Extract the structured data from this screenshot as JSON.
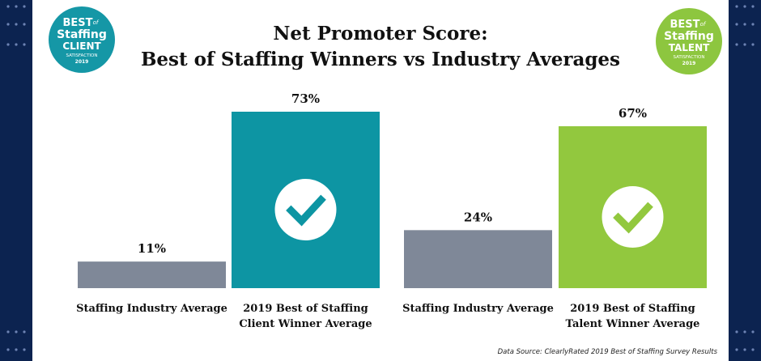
{
  "title": {
    "line1": "Net Promoter Score:",
    "line2": "Best of Staffing Winners vs Industry Averages"
  },
  "badges": [
    {
      "name": "client",
      "line1": "BEST",
      "line2": "of",
      "line3": "Staffing",
      "line4": "CLIENT",
      "line5": "SATISFACTION",
      "line6": "2019",
      "color": "#1597a6"
    },
    {
      "name": "talent",
      "line1": "BEST",
      "line2": "of",
      "line3": "Staffing",
      "line4": "TALENT",
      "line5": "SATISFACTION",
      "line6": "2019",
      "color": "#8dc63f"
    }
  ],
  "chart_data": {
    "type": "bar",
    "categories": [
      "Staffing Industry Average",
      "2019 Best of Staffing\nClient Winner Average",
      "Staffing Industry Average",
      "2019 Best of Staffing\nTalent Winner Average"
    ],
    "values": [
      11,
      73,
      24,
      67
    ],
    "value_labels": [
      "11%",
      "73%",
      "24%",
      "67%"
    ],
    "colors": [
      "#7f8898",
      "#0d95a3",
      "#7f8898",
      "#92c83e"
    ],
    "check_mark": [
      false,
      true,
      false,
      true
    ],
    "ylim": [
      0,
      100
    ],
    "grid": false
  },
  "source": "Data Source: ClearlyRated 2019 Best of Staffing Survey Results",
  "colors": {
    "background": "#0c2350",
    "panel": "#ffffff",
    "industry_bar": "#7f8898",
    "client_bar": "#0d95a3",
    "talent_bar": "#92c83e"
  }
}
